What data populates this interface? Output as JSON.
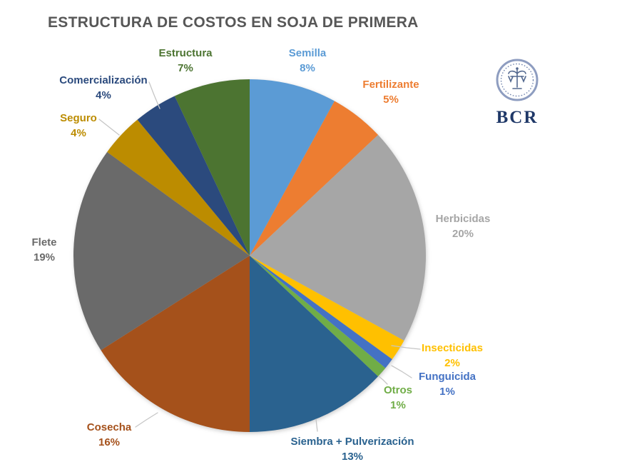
{
  "logo": {
    "text": "BCR",
    "emblem": "bcr-seal-scales-caduceus",
    "text_color": "#1f3868",
    "emblem_color": "#8094ba"
  },
  "chart_data": {
    "type": "pie",
    "title": "ESTRUCTURA DE COSTOS EN SOJA DE PRIMERA",
    "title_color": "#575757",
    "unit": "%",
    "start_angle_deg": 0,
    "direction": "clockwise",
    "legend_position": "outside-labels",
    "slices": [
      {
        "id": "semilla",
        "label": "Semilla",
        "value": 8,
        "pct_label": "8%",
        "color": "#5B9BD5"
      },
      {
        "id": "fertilizante",
        "label": "Fertilizante",
        "value": 5,
        "pct_label": "5%",
        "color": "#ED7D31"
      },
      {
        "id": "herbicidas",
        "label": "Herbicidas",
        "value": 20,
        "pct_label": "20%",
        "color": "#A6A6A6"
      },
      {
        "id": "insecticidas",
        "label": "Insecticidas",
        "value": 2,
        "pct_label": "2%",
        "color": "#FFC000"
      },
      {
        "id": "funguicida",
        "label": "Funguicida",
        "value": 1,
        "pct_label": "1%",
        "color": "#4472C4"
      },
      {
        "id": "otros",
        "label": "Otros",
        "value": 1,
        "pct_label": "1%",
        "color": "#70AD47"
      },
      {
        "id": "siembra",
        "label": "Siembra + Pulverización",
        "value": 13,
        "pct_label": "13%",
        "color": "#2A628F"
      },
      {
        "id": "cosecha",
        "label": "Cosecha",
        "value": 16,
        "pct_label": "16%",
        "color": "#A5511B"
      },
      {
        "id": "flete",
        "label": "Flete",
        "value": 19,
        "pct_label": "19%",
        "color": "#6A6A6A"
      },
      {
        "id": "seguro",
        "label": "Seguro",
        "value": 4,
        "pct_label": "4%",
        "color": "#BC8C00"
      },
      {
        "id": "comercializacion",
        "label": "Comercialización",
        "value": 4,
        "pct_label": "4%",
        "color": "#2B4A7D"
      },
      {
        "id": "estructura",
        "label": "Estructura",
        "value": 7,
        "pct_label": "7%",
        "color": "#4C7431"
      }
    ]
  }
}
